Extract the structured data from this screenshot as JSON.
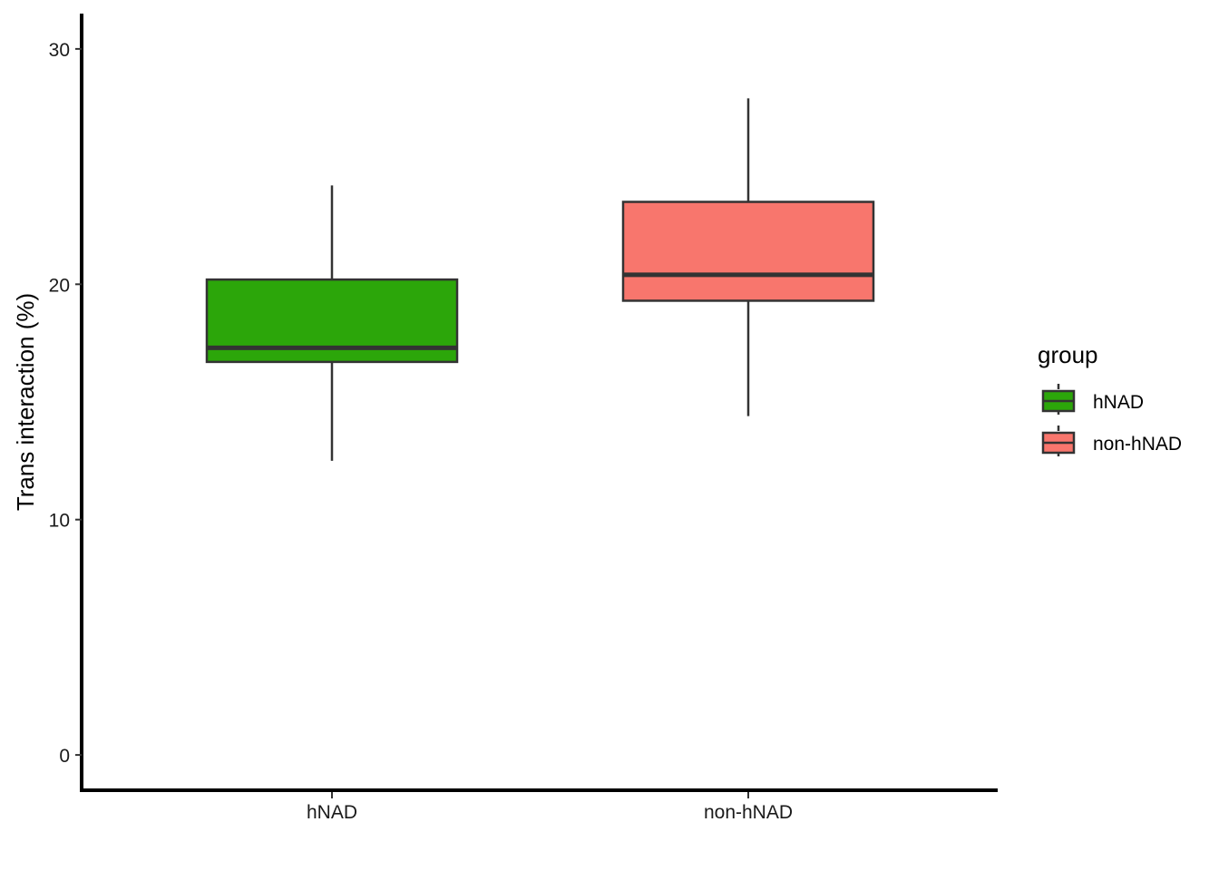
{
  "chart_data": {
    "type": "box",
    "title": "",
    "xlabel": "",
    "ylabel": "Trans interaction (%)",
    "ylim": [
      -1.5,
      31.5
    ],
    "yticks": [
      0,
      10,
      20,
      30
    ],
    "ytick_labels": [
      "0",
      "10",
      "20",
      "30"
    ],
    "categories": [
      "hNAD",
      "non-hNAD"
    ],
    "grid": false,
    "boxes": [
      {
        "category": "hNAD",
        "lower_whisker": 12.5,
        "q1": 16.7,
        "median": 17.3,
        "q3": 20.2,
        "upper_whisker": 24.2,
        "color": "#2CA60A"
      },
      {
        "category": "non-hNAD",
        "lower_whisker": 14.4,
        "q1": 19.3,
        "median": 20.4,
        "q3": 23.5,
        "upper_whisker": 27.9,
        "color": "#F8766D"
      }
    ],
    "legend": {
      "title": "group",
      "position": "right",
      "entries": [
        {
          "label": "hNAD",
          "color": "#2CA60A"
        },
        {
          "label": "non-hNAD",
          "color": "#F8766D"
        }
      ]
    }
  }
}
